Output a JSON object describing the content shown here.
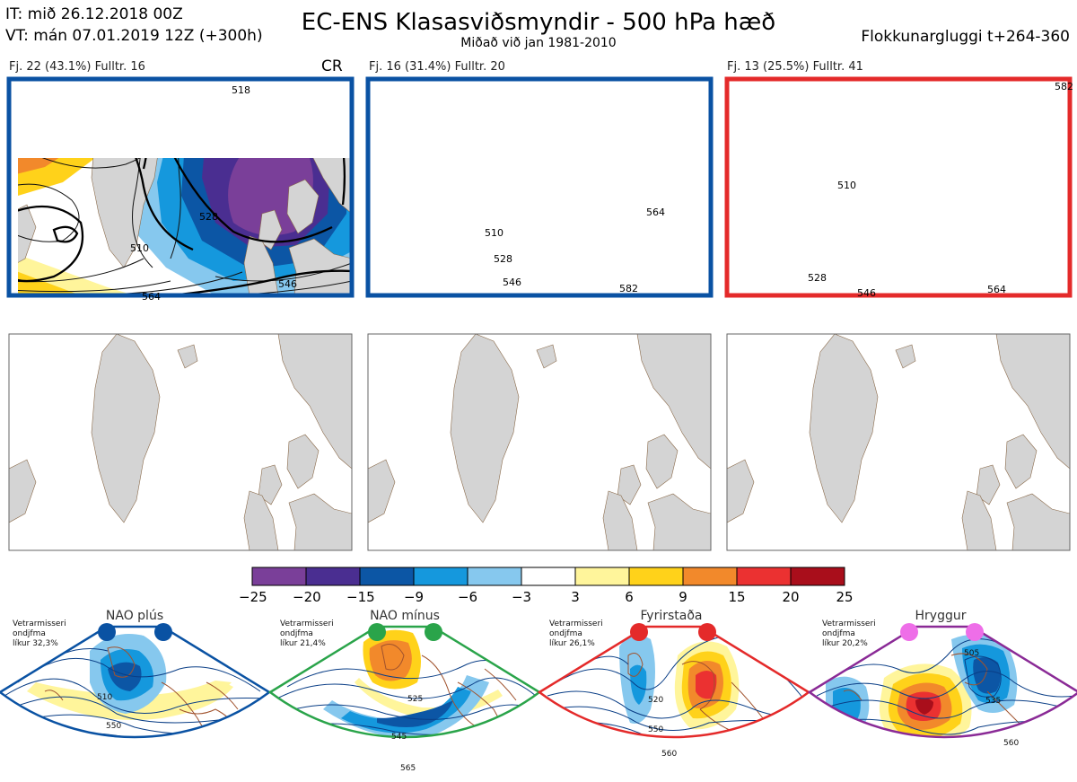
{
  "header": {
    "it": "IT: mið 26.12.2018 00Z",
    "vt": "VT: mán 07.01.2019 12Z  (+300h)",
    "title": "EC-ENS Klasasviðsmyndir - 500 hPa hæð",
    "subtitle": "Miðað við jan 1981-2010",
    "window": "Flokkunargluggi t+264-360"
  },
  "panels": [
    {
      "label": "Fj. 22 (43.1%)   Fulltr. 16",
      "frame_color": "#0a52a3",
      "tag": "CR",
      "contours": [
        "518",
        "528",
        "546",
        "564",
        "510"
      ]
    },
    {
      "label": "Fj. 16 (31.4%)   Fulltr. 20",
      "frame_color": "#0a52a3",
      "contours": [
        "510",
        "528",
        "546",
        "564",
        "582"
      ]
    },
    {
      "label": "Fj. 13 (25.5%)   Fulltr. 41",
      "frame_color": "#e42a2a",
      "contours": [
        "510",
        "528",
        "546",
        "564",
        "582"
      ]
    }
  ],
  "colorbar": {
    "colors": [
      "#7a3f99",
      "#4a2e91",
      "#0c56a5",
      "#1598dd",
      "#86c8ee",
      "#ffffff",
      "#fff59b",
      "#ffd21a",
      "#f2892b",
      "#eb3131",
      "#a90e1b"
    ],
    "labels": [
      "−25",
      "−20",
      "−15",
      "−9",
      "−6",
      "−3",
      "3",
      "6",
      "9",
      "15",
      "20",
      "25"
    ]
  },
  "regimes": [
    {
      "title": "NAO plús",
      "note_1": "Vetrarmisseri",
      "note_2": "ondjfma",
      "note_3": "líkur 32,3%",
      "frame_color": "#0a52a3",
      "dot_color": "#0a52a3",
      "contours": [
        "510",
        "550"
      ]
    },
    {
      "title": "NAO mínus",
      "note_1": "Vetrarmisseri",
      "note_2": "ondjfma",
      "note_3": "líkur 21,4%",
      "frame_color": "#2aa44a",
      "dot_color": "#2aa44a",
      "contours": [
        "525",
        "545",
        "565"
      ]
    },
    {
      "title": "Fyrirstaða",
      "note_1": "Vetrarmisseri",
      "note_2": "ondjfma",
      "note_3": "líkur 26,1%",
      "frame_color": "#e42a2a",
      "dot_color": "#e42a2a",
      "contours": [
        "520",
        "550",
        "560"
      ]
    },
    {
      "title": "Hryggur",
      "note_1": "Vetrarmisseri",
      "note_2": "ondjfma",
      "note_3": "líkur 20,2%",
      "frame_color": "#8a2a96",
      "dot_color": "#ee6ee8",
      "contours": [
        "505",
        "535",
        "560"
      ]
    }
  ]
}
